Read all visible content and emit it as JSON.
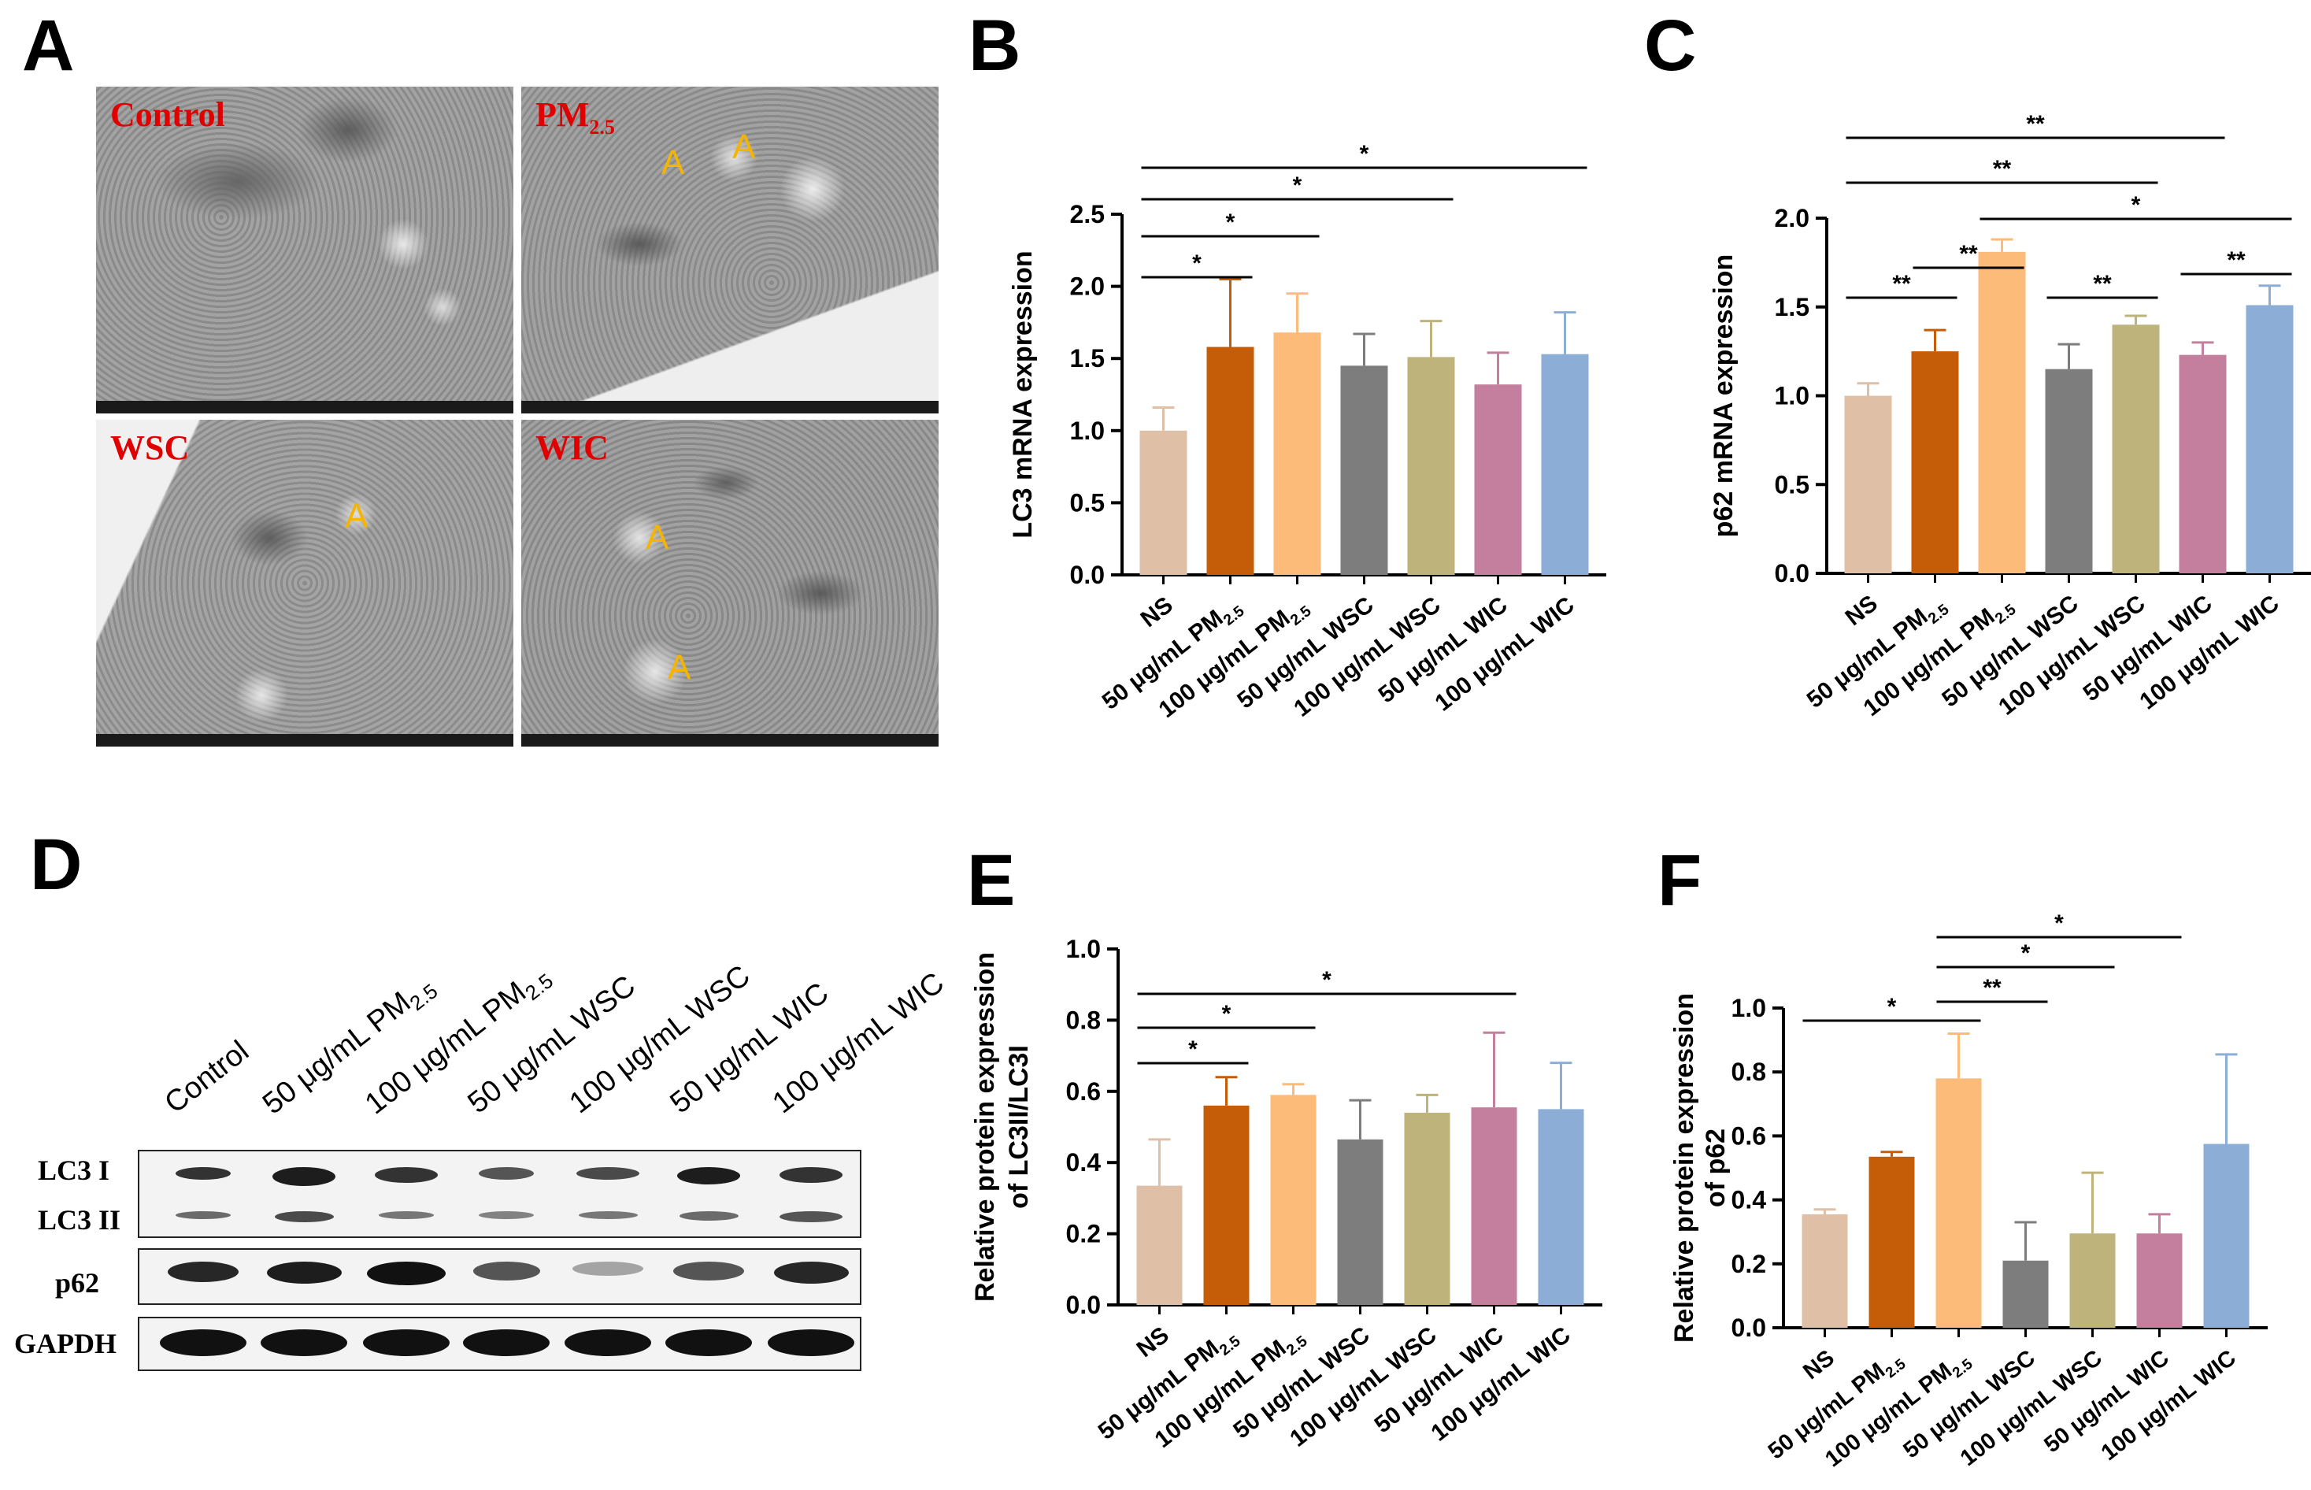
{
  "panels": {
    "A": "A",
    "B": "B",
    "C": "C",
    "D": "D",
    "E": "E",
    "F": "F"
  },
  "em_labels": {
    "control": "Control",
    "pm_base": "PM",
    "pm_sub": "2.5",
    "wsc": "WSC",
    "wic": "WIC",
    "autophagosome": "A"
  },
  "western_blot": {
    "lanes": [
      "Control",
      "50 μg/mL PM",
      "100 μg/mL PM",
      "50 μg/mL WSC",
      "100 μg/mL WSC",
      "50 μg/mL WIC",
      "100 μg/mL WIC"
    ],
    "lane_subscripts": [
      "",
      "2.5",
      "2.5",
      "",
      "",
      "",
      ""
    ],
    "rows": {
      "lc3i": "LC3 I",
      "lc3ii": "LC3 II",
      "p62": "p62",
      "gapdh": "GAPDH"
    }
  },
  "colors": [
    "#dfc0a6",
    "#c45c08",
    "#fdbb7a",
    "#7d7d7d",
    "#bfb37c",
    "#c47f9f",
    "#8caed6"
  ],
  "chart_data": [
    {
      "id": "B",
      "type": "bar",
      "ylabel": "LC3 mRNA expression",
      "ylim": [
        0,
        2.5
      ],
      "yticks": [
        "0.0",
        "0.5",
        "1.0",
        "1.5",
        "2.0",
        "2.5"
      ],
      "categories": [
        "NS",
        "50 μg/mL PM",
        "100 μg/mL PM",
        "50 μg/mL WSC",
        "100 μg/mL WSC",
        "50 μg/mL WIC",
        "100 μg/mL WIC"
      ],
      "subscripts": [
        "",
        "2.5",
        "2.5",
        "",
        "",
        "",
        ""
      ],
      "values": [
        1.0,
        1.58,
        1.68,
        1.45,
        1.51,
        1.32,
        1.53
      ],
      "errors": [
        0.16,
        0.47,
        0.27,
        0.22,
        0.25,
        0.22,
        0.29
      ],
      "significance": [
        {
          "from": 0,
          "to": 1,
          "label": "*"
        },
        {
          "from": 0,
          "to": 2,
          "label": "*"
        },
        {
          "from": 0,
          "to": 4,
          "label": "*"
        },
        {
          "from": 0,
          "to": 6,
          "label": "*"
        }
      ]
    },
    {
      "id": "C",
      "type": "bar",
      "ylabel": "p62 mRNA expression",
      "ylim": [
        0,
        2.0
      ],
      "yticks": [
        "0.0",
        "0.5",
        "1.0",
        "1.5",
        "2.0"
      ],
      "categories": [
        "NS",
        "50 μg/mL PM",
        "100 μg/mL PM",
        "50 μg/mL WSC",
        "100 μg/mL WSC",
        "50 μg/mL WIC",
        "100 μg/mL WIC"
      ],
      "subscripts": [
        "",
        "2.5",
        "2.5",
        "",
        "",
        "",
        ""
      ],
      "values": [
        1.0,
        1.25,
        1.81,
        1.15,
        1.4,
        1.23,
        1.51
      ],
      "errors": [
        0.07,
        0.12,
        0.07,
        0.14,
        0.05,
        0.07,
        0.11
      ],
      "significance": [
        {
          "from": 0,
          "to": 1,
          "label": "**"
        },
        {
          "from": 1,
          "to": 2,
          "label": "**"
        },
        {
          "from": 3,
          "to": 4,
          "label": "**"
        },
        {
          "from": 5,
          "to": 6,
          "label": "**"
        },
        {
          "from": 2,
          "to": 6,
          "label": "*"
        },
        {
          "from": 0,
          "to": 4,
          "label": "**"
        },
        {
          "from": 0,
          "to": 5,
          "label": "**"
        }
      ]
    },
    {
      "id": "E",
      "type": "bar",
      "ylabel": "Relative protein expression",
      "ylabel2": "of LC3II/LC3I",
      "ylim": [
        0,
        1.0
      ],
      "yticks": [
        "0.0",
        "0.2",
        "0.4",
        "0.6",
        "0.8",
        "1.0"
      ],
      "categories": [
        "NS",
        "50 μg/mL PM",
        "100 μg/mL PM",
        "50 μg/mL WSC",
        "100 μg/mL WSC",
        "50 μg/mL WIC",
        "100 μg/mL WIC"
      ],
      "subscripts": [
        "",
        "2.5",
        "2.5",
        "",
        "",
        "",
        ""
      ],
      "values": [
        0.335,
        0.56,
        0.59,
        0.465,
        0.54,
        0.555,
        0.55
      ],
      "errors": [
        0.13,
        0.08,
        0.03,
        0.11,
        0.05,
        0.21,
        0.13
      ],
      "significance": [
        {
          "from": 0,
          "to": 1,
          "label": "*"
        },
        {
          "from": 0,
          "to": 2,
          "label": "*"
        },
        {
          "from": 0,
          "to": 5,
          "label": "*"
        }
      ]
    },
    {
      "id": "F",
      "type": "bar",
      "ylabel": "Relative protein expression",
      "ylabel2": "of p62",
      "ylim": [
        0,
        1.0
      ],
      "yticks": [
        "0.0",
        "0.2",
        "0.4",
        "0.6",
        "0.8",
        "1.0"
      ],
      "categories": [
        "NS",
        "50 μg/mL PM",
        "100 μg/mL PM",
        "50 μg/mL WSC",
        "100 μg/mL WSC",
        "50 μg/mL WIC",
        "100 μg/mL WIC"
      ],
      "subscripts": [
        "",
        "2.5",
        "2.5",
        "",
        "",
        "",
        ""
      ],
      "values": [
        0.355,
        0.535,
        0.78,
        0.21,
        0.295,
        0.295,
        0.575
      ],
      "errors": [
        0.015,
        0.015,
        0.14,
        0.12,
        0.19,
        0.06,
        0.28
      ],
      "significance": [
        {
          "from": 0,
          "to": 2,
          "label": "*"
        },
        {
          "from": 2,
          "to": 3,
          "label": "**"
        },
        {
          "from": 2,
          "to": 4,
          "label": "*"
        },
        {
          "from": 2,
          "to": 5,
          "label": "*"
        }
      ]
    }
  ]
}
